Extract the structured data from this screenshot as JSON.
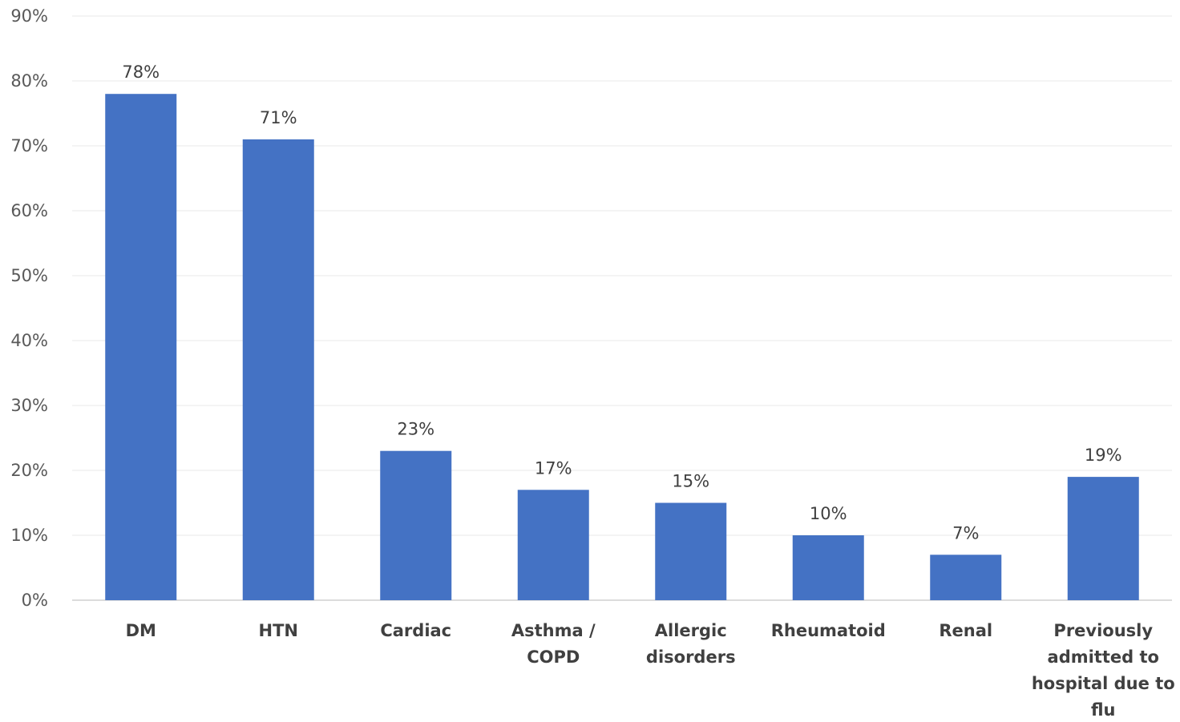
{
  "chart_data": {
    "type": "bar",
    "categories": [
      [
        "DM"
      ],
      [
        "HTN"
      ],
      [
        "Cardiac"
      ],
      [
        "Asthma /",
        "COPD"
      ],
      [
        "Allergic",
        "disorders"
      ],
      [
        "Rheumatoid"
      ],
      [
        "Renal"
      ],
      [
        "Previously",
        "admitted to",
        "hospital due to",
        "flu"
      ]
    ],
    "values": [
      78,
      71,
      23,
      17,
      15,
      10,
      7,
      19
    ],
    "data_labels": [
      "78%",
      "71%",
      "23%",
      "17%",
      "15%",
      "10%",
      "7%",
      "19%"
    ],
    "y_ticks": [
      0,
      10,
      20,
      30,
      40,
      50,
      60,
      70,
      80,
      90
    ],
    "y_tick_labels": [
      "0%",
      "10%",
      "20%",
      "30%",
      "40%",
      "50%",
      "60%",
      "70%",
      "80%",
      "90%"
    ],
    "ylim": [
      0,
      90
    ],
    "grid": true,
    "legend": "none",
    "bar_color": "#4472c4",
    "gridline_color": "#f0f0f0",
    "title": "",
    "xlabel": "",
    "ylabel": ""
  }
}
